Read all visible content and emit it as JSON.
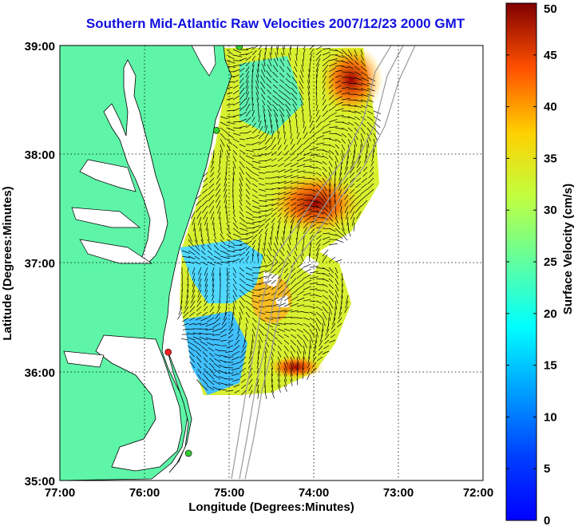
{
  "title": "Southern Mid-Atlantic Raw Velocities 2007/12/23 2000 GMT",
  "map": {
    "xlabel": "Longitude (Degrees:Minutes)",
    "ylabel": "Latitude (Degrees:Minutes)",
    "lon_range": [
      -77,
      -72
    ],
    "lat_range": [
      35,
      39
    ],
    "lon_ticks": [
      "77:00",
      "76:00",
      "75:00",
      "74:00",
      "73:00",
      "72:00"
    ],
    "lat_ticks": [
      "39:00",
      "38:00",
      "37:00",
      "36:00",
      "35:00"
    ],
    "grid": true,
    "land_color": "#5ef5a8",
    "water_color": "#ffffff",
    "bathymetry_color": "#999999",
    "stations": [
      {
        "lon": -74.88,
        "lat": 38.99,
        "color": "#33cc33"
      },
      {
        "lon": -75.15,
        "lat": 38.22,
        "color": "#33cc33"
      },
      {
        "lon": -75.72,
        "lat": 36.18,
        "color": "#ff2020"
      },
      {
        "lon": -75.48,
        "lat": 35.25,
        "color": "#33cc33"
      }
    ]
  },
  "colorbar": {
    "label": "Surface Velocity (cm/s)",
    "range": [
      0,
      50
    ],
    "ticks": [
      "0",
      "5",
      "10",
      "15",
      "20",
      "25",
      "30",
      "35",
      "40",
      "45",
      "50"
    ],
    "colormap": "jet"
  }
}
